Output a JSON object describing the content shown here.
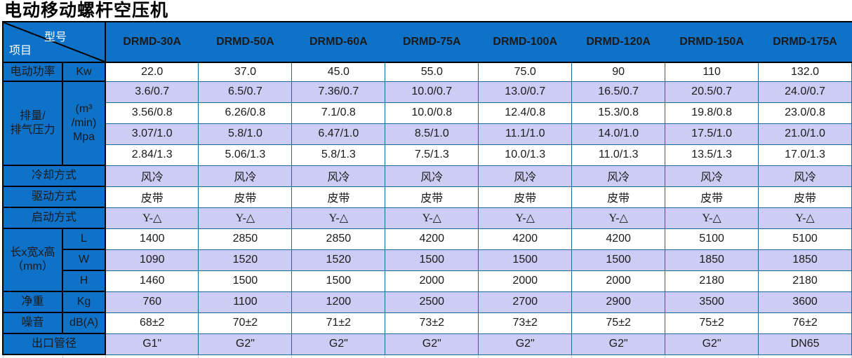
{
  "title": "电动移动螺杆空压机",
  "colors": {
    "header_blue": "#0f72c9",
    "row_purple": "#cdccf4",
    "grid_blue": "#19699f",
    "label_border_black": "#000000",
    "text_white": "#ffffff",
    "text_black": "#1a1a1a"
  },
  "table": {
    "corner": {
      "model": "型号",
      "item": "项目"
    },
    "models": [
      "DRMD-30A",
      "DRMD-50A",
      "DRMD-60A",
      "DRMD-75A",
      "DRMD-100A",
      "DRMD-120A",
      "DRMD-150A",
      "DRMD-175A"
    ],
    "sections": [
      {
        "key": "motor-power",
        "label": "电动功率",
        "unit": "Kw",
        "rows": [
          [
            "22.0",
            "37.0",
            "45.0",
            "55.0",
            "75.0",
            "90",
            "110",
            "132.0"
          ]
        ]
      },
      {
        "key": "displacement-pressure",
        "label": "排量/\n排气压力",
        "unit": "(m³\n/min)\nMpa",
        "rows": [
          [
            "3.6/0.7",
            "6.5/0.7",
            "7.36/0.7",
            "10.0/0.7",
            "13.0/0.7",
            "16.5/0.7",
            "20.5/0.7",
            "24.0/0.7"
          ],
          [
            "3.56/0.8",
            "6.26/0.8",
            "7.1/0.8",
            "10.0/0.8",
            "12.4/0.8",
            "15.3/0.8",
            "19.8/0.8",
            "23.0/0.8"
          ],
          [
            "3.07/1.0",
            "5.8/1.0",
            "6.47/1.0",
            "8.5/1.0",
            "11.1/1.0",
            "14.0/1.0",
            "17.5/1.0",
            "21.0/1.0"
          ],
          [
            "2.84/1.3",
            "5.06/1.3",
            "5.8/1.3",
            "7.5/1.3",
            "10.0/1.3",
            "11.0/1.3",
            "13.5/1.3",
            "17.0/1.3"
          ]
        ]
      },
      {
        "key": "cooling-method",
        "label": "冷却方式",
        "rows": [
          [
            "风冷",
            "风冷",
            "风冷",
            "风冷",
            "风冷",
            "风冷",
            "风冷",
            "风冷"
          ]
        ]
      },
      {
        "key": "drive-method",
        "label": "驱动方式",
        "rows": [
          [
            "皮带",
            "皮带",
            "皮带",
            "皮带",
            "皮带",
            "皮带",
            "皮带",
            "皮带"
          ]
        ]
      },
      {
        "key": "start-method",
        "label": "启动方式",
        "rows": [
          [
            "Y-△",
            "Y-△",
            "Y-△",
            "Y-△",
            "Y-△",
            "Y-△",
            "Y-△",
            "Y-△"
          ]
        ]
      },
      {
        "key": "dimensions",
        "label": "长x宽x高\n（mm）",
        "units": [
          "L",
          "W",
          "H"
        ],
        "rows": [
          [
            "1400",
            "2850",
            "2850",
            "4200",
            "4200",
            "4200",
            "5100",
            "5100"
          ],
          [
            "1090",
            "1520",
            "1520",
            "1500",
            "1500",
            "1500",
            "1850",
            "1850"
          ],
          [
            "1460",
            "1500",
            "1500",
            "2000",
            "2000",
            "2000",
            "2180",
            "2180"
          ]
        ]
      },
      {
        "key": "net-weight",
        "label": "净重",
        "unit": "Kg",
        "rows": [
          [
            "760",
            "1100",
            "1200",
            "2500",
            "2700",
            "2900",
            "3500",
            "3600"
          ]
        ]
      },
      {
        "key": "noise",
        "label": "噪音",
        "unit": "dB(A)",
        "rows": [
          [
            "68±2",
            "70±2",
            "71±2",
            "73±2",
            "73±2",
            "75±2",
            "75±2",
            "76±2"
          ]
        ]
      },
      {
        "key": "outlet-diameter",
        "label": "出口管径",
        "rows": [
          [
            "G1\"",
            "G2\"",
            "G2\"",
            "G2\"",
            "G2\"",
            "G2\"",
            "G2\"",
            "DN65"
          ]
        ]
      }
    ]
  }
}
